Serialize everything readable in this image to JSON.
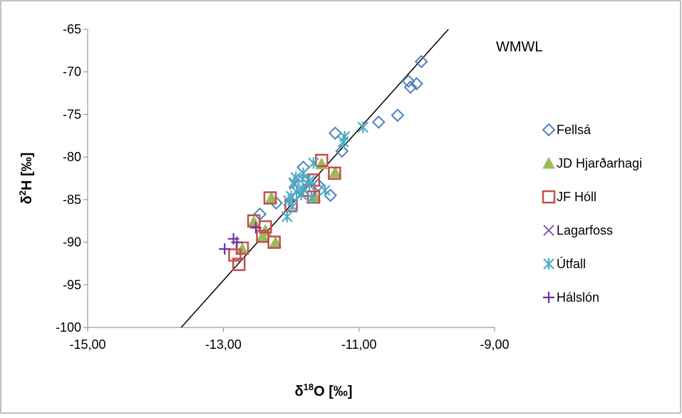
{
  "chart_data": {
    "type": "scatter",
    "xlabel": {
      "main": "δ",
      "sup": "18",
      "rest": "O [‰]"
    },
    "ylabel": {
      "main": "δ",
      "sup": "2",
      "rest": "H [‰]"
    },
    "xlim": [
      -15,
      -9
    ],
    "ylim": [
      -100,
      -65
    ],
    "x_ticks": [
      -15,
      -13,
      -11,
      -9
    ],
    "x_tick_labels": [
      "-15,00",
      "-13,00",
      "-11,00",
      "-9,00"
    ],
    "y_ticks": [
      -65,
      -70,
      -75,
      -80,
      -85,
      -90,
      -95,
      -100
    ],
    "y_tick_labels": [
      "-65",
      "-70",
      "-75",
      "-80",
      "-85",
      "-90",
      "-95",
      "-100"
    ],
    "grid": false,
    "legend_position": "right",
    "annotation": "WMWL",
    "reference_line": {
      "x": [
        -13.62,
        -9.68
      ],
      "y": [
        -100,
        -65
      ]
    },
    "series": [
      {
        "name": "Fellsá",
        "marker": "diamond",
        "color": "#4f81bd",
        "points": [
          [
            -10.08,
            -68.8
          ],
          [
            -10.27,
            -71.1
          ],
          [
            -10.15,
            -71.4
          ],
          [
            -10.24,
            -71.8
          ],
          [
            -10.43,
            -75.1
          ],
          [
            -10.71,
            -75.9
          ],
          [
            -11.35,
            -77.2
          ],
          [
            -11.25,
            -79.3
          ],
          [
            -11.82,
            -81.2
          ],
          [
            -11.6,
            -83.3
          ],
          [
            -11.42,
            -84.5
          ],
          [
            -12.22,
            -85.4
          ],
          [
            -12.46,
            -86.7
          ]
        ]
      },
      {
        "name": "JD Hjarðarhagi",
        "marker": "triangle",
        "color": "#9bbb59",
        "points": [
          [
            -11.55,
            -80.8
          ],
          [
            -11.35,
            -81.8
          ],
          [
            -12.29,
            -84.8
          ],
          [
            -11.65,
            -84.6
          ],
          [
            -12.55,
            -87.6
          ],
          [
            -12.38,
            -88.6
          ],
          [
            -12.42,
            -89.3
          ],
          [
            -12.23,
            -90.0
          ],
          [
            -12.72,
            -90.8
          ]
        ]
      },
      {
        "name": "JF Hóll",
        "marker": "square",
        "color": "#c0504d",
        "points": [
          [
            -11.55,
            -80.4
          ],
          [
            -11.36,
            -81.9
          ],
          [
            -11.67,
            -82.7
          ],
          [
            -11.74,
            -83.9
          ],
          [
            -12.31,
            -84.8
          ],
          [
            -11.67,
            -84.7
          ],
          [
            -12.0,
            -85.7
          ],
          [
            -12.55,
            -87.5
          ],
          [
            -12.38,
            -88.2
          ],
          [
            -12.42,
            -89.3
          ],
          [
            -12.25,
            -90.0
          ],
          [
            -12.72,
            -90.7
          ],
          [
            -12.83,
            -91.5
          ],
          [
            -12.77,
            -92.6
          ]
        ]
      },
      {
        "name": "Lagarfoss",
        "marker": "x",
        "color": "#8064a2",
        "points": [
          [
            -11.95,
            -83.2
          ],
          [
            -11.82,
            -83.8
          ]
        ]
      },
      {
        "name": "Útfall",
        "marker": "asterisk",
        "color": "#4bacc6",
        "points": [
          [
            -10.94,
            -76.5
          ],
          [
            -11.21,
            -77.6
          ],
          [
            -11.23,
            -78.2
          ],
          [
            -11.67,
            -80.7
          ],
          [
            -11.82,
            -81.9
          ],
          [
            -11.93,
            -82.4
          ],
          [
            -11.83,
            -82.6
          ],
          [
            -11.73,
            -82.8
          ],
          [
            -11.96,
            -83.0
          ],
          [
            -11.73,
            -83.3
          ],
          [
            -11.83,
            -83.7
          ],
          [
            -11.5,
            -83.9
          ],
          [
            -11.92,
            -84.1
          ],
          [
            -11.85,
            -84.4
          ],
          [
            -12.0,
            -84.6
          ],
          [
            -11.7,
            -84.8
          ],
          [
            -12.04,
            -85.1
          ],
          [
            -11.98,
            -85.8
          ],
          [
            -12.06,
            -87.0
          ]
        ]
      },
      {
        "name": "Hálslón",
        "marker": "plus",
        "color": "#7030a0",
        "points": [
          [
            -12.52,
            -88.3
          ],
          [
            -12.85,
            -89.6
          ],
          [
            -12.8,
            -90.0
          ],
          [
            -12.98,
            -90.8
          ]
        ]
      }
    ]
  }
}
